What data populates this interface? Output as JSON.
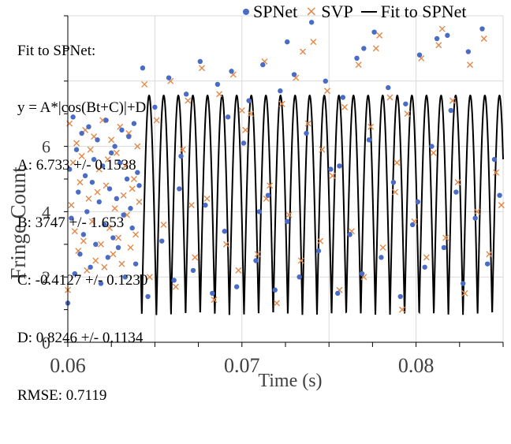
{
  "colors": {
    "spnet": "#4a6cc5",
    "svp": "#e3884a",
    "fit": "#000000",
    "grid": "#d9d9d9",
    "axis": "#000000"
  },
  "fit_text": [
    "Fit to SPNet:",
    "y = A*|cos(Bt+C)|+D",
    "A: 6.733 +/- 0.1538",
    "B: 3747 +/- 1.653",
    "C: -0.4127 +/- 0.1230",
    "D: 0.8246 +/- 0.1134",
    "RMSE: 0.7119"
  ],
  "legend": [
    {
      "label": "SPNet",
      "marker": "dot-icon"
    },
    {
      "label": "SVP",
      "marker": "cross-icon"
    },
    {
      "label": "Fit to SPNet",
      "marker": "line-icon"
    }
  ],
  "chart_data": {
    "type": "scatter",
    "title": "",
    "xlabel": "Time (s)",
    "ylabel": "Fringe Count",
    "xlim": [
      0.06,
      0.085
    ],
    "ylim": [
      0,
      10
    ],
    "x_ticks": [
      0.06,
      0.07,
      0.08
    ],
    "x_tick_labels": [
      "0.06",
      "0.07",
      "0.08"
    ],
    "y_ticks": [
      0,
      2,
      4,
      6
    ],
    "y_tick_labels": [
      "0",
      "2",
      "4",
      "6"
    ],
    "grid": true,
    "legend_position": "top-right",
    "fit": {
      "name": "Fit to SPNet",
      "model": "y = A*|cos(Bt+C)|+D",
      "A": 6.733,
      "B": 3747,
      "C": -0.4127,
      "D": 0.8246,
      "x_start": 0.0642,
      "x_end": 0.085
    },
    "series": [
      {
        "name": "SPNet",
        "marker": "dot",
        "points": [
          [
            0.06,
            1.2
          ],
          [
            0.0601,
            5.3
          ],
          [
            0.0602,
            3.8
          ],
          [
            0.0603,
            6.9
          ],
          [
            0.0604,
            2.1
          ],
          [
            0.0605,
            5.9
          ],
          [
            0.0606,
            4.6
          ],
          [
            0.0607,
            2.7
          ],
          [
            0.0608,
            6.4
          ],
          [
            0.0609,
            3.3
          ],
          [
            0.061,
            5.1
          ],
          [
            0.0611,
            4.0
          ],
          [
            0.0612,
            6.6
          ],
          [
            0.0613,
            2.3
          ],
          [
            0.0614,
            4.9
          ],
          [
            0.0615,
            5.6
          ],
          [
            0.0616,
            3.0
          ],
          [
            0.0617,
            6.2
          ],
          [
            0.0618,
            4.3
          ],
          [
            0.0619,
            1.8
          ],
          [
            0.062,
            5.4
          ],
          [
            0.0621,
            3.6
          ],
          [
            0.0622,
            6.8
          ],
          [
            0.0623,
            2.6
          ],
          [
            0.0624,
            4.7
          ],
          [
            0.0625,
            5.8
          ],
          [
            0.0626,
            3.2
          ],
          [
            0.0627,
            6.0
          ],
          [
            0.0628,
            4.4
          ],
          [
            0.0629,
            2.9
          ],
          [
            0.063,
            5.5
          ],
          [
            0.0631,
            6.5
          ],
          [
            0.0632,
            3.9
          ],
          [
            0.0633,
            2.0
          ],
          [
            0.0634,
            5.0
          ],
          [
            0.0635,
            6.3
          ],
          [
            0.0636,
            4.1
          ],
          [
            0.0637,
            3.5
          ],
          [
            0.0638,
            6.7
          ],
          [
            0.0639,
            2.4
          ],
          [
            0.064,
            5.2
          ],
          [
            0.0641,
            4.8
          ],
          [
            0.0643,
            8.4
          ],
          [
            0.0646,
            1.4
          ],
          [
            0.065,
            7.2
          ],
          [
            0.0654,
            3.1
          ],
          [
            0.0658,
            8.1
          ],
          [
            0.0661,
            1.9
          ],
          [
            0.0665,
            5.7
          ],
          [
            0.0668,
            7.6
          ],
          [
            0.0672,
            2.2
          ],
          [
            0.0676,
            8.6
          ],
          [
            0.0679,
            4.2
          ],
          [
            0.0683,
            1.5
          ],
          [
            0.0686,
            7.9
          ],
          [
            0.069,
            3.4
          ],
          [
            0.0694,
            8.3
          ],
          [
            0.0697,
            1.7
          ],
          [
            0.0701,
            6.1
          ],
          [
            0.0704,
            7.4
          ],
          [
            0.0708,
            2.5
          ],
          [
            0.0712,
            8.5
          ],
          [
            0.0715,
            4.5
          ],
          [
            0.0719,
            1.6
          ],
          [
            0.0722,
            7.7
          ],
          [
            0.0726,
            3.7
          ],
          [
            0.073,
            8.2
          ],
          [
            0.0733,
            2.0
          ],
          [
            0.0737,
            6.4
          ],
          [
            0.074,
            9.8
          ],
          [
            0.0744,
            2.8
          ],
          [
            0.0748,
            8.0
          ],
          [
            0.0751,
            5.3
          ],
          [
            0.0755,
            1.5
          ],
          [
            0.0758,
            7.5
          ],
          [
            0.0762,
            3.3
          ],
          [
            0.0766,
            8.7
          ],
          [
            0.0769,
            2.1
          ],
          [
            0.0773,
            6.2
          ],
          [
            0.0776,
            9.5
          ],
          [
            0.078,
            2.6
          ],
          [
            0.0784,
            7.8
          ],
          [
            0.0787,
            4.9
          ],
          [
            0.0791,
            1.4
          ],
          [
            0.0794,
            7.3
          ],
          [
            0.0798,
            3.6
          ],
          [
            0.0802,
            8.8
          ],
          [
            0.0805,
            2.3
          ],
          [
            0.0809,
            6.0
          ],
          [
            0.0812,
            9.3
          ],
          [
            0.0816,
            2.9
          ],
          [
            0.082,
            7.1
          ],
          [
            0.0823,
            4.6
          ],
          [
            0.0827,
            1.8
          ],
          [
            0.083,
            8.9
          ],
          [
            0.0834,
            3.8
          ],
          [
            0.0838,
            9.6
          ],
          [
            0.0841,
            2.4
          ],
          [
            0.0845,
            5.6
          ],
          [
            0.0848,
            4.5
          ],
          [
            0.0818,
            9.4
          ],
          [
            0.077,
            9.0
          ],
          [
            0.0726,
            9.2
          ],
          [
            0.0692,
            6.9
          ],
          [
            0.0664,
            4.7
          ],
          [
            0.0801,
            4.3
          ],
          [
            0.0756,
            5.4
          ],
          [
            0.071,
            4.0
          ]
        ]
      },
      {
        "name": "SVP",
        "marker": "cross",
        "points": [
          [
            0.06,
            1.6
          ],
          [
            0.0601,
            6.7
          ],
          [
            0.0602,
            4.2
          ],
          [
            0.0603,
            5.5
          ],
          [
            0.0604,
            3.4
          ],
          [
            0.0605,
            6.1
          ],
          [
            0.0606,
            2.8
          ],
          [
            0.0607,
            4.9
          ],
          [
            0.0608,
            5.7
          ],
          [
            0.0609,
            3.1
          ],
          [
            0.061,
            6.5
          ],
          [
            0.0611,
            2.2
          ],
          [
            0.0612,
            4.4
          ],
          [
            0.0613,
            5.9
          ],
          [
            0.0614,
            3.7
          ],
          [
            0.0615,
            6.3
          ],
          [
            0.0616,
            2.5
          ],
          [
            0.0617,
            4.6
          ],
          [
            0.0618,
            5.3
          ],
          [
            0.0619,
            3.0
          ],
          [
            0.062,
            6.8
          ],
          [
            0.0621,
            2.3
          ],
          [
            0.0622,
            4.8
          ],
          [
            0.0623,
            5.6
          ],
          [
            0.0624,
            3.5
          ],
          [
            0.0625,
            6.2
          ],
          [
            0.0626,
            2.7
          ],
          [
            0.0627,
            4.1
          ],
          [
            0.0628,
            5.8
          ],
          [
            0.0629,
            3.2
          ],
          [
            0.063,
            6.6
          ],
          [
            0.0631,
            2.4
          ],
          [
            0.0632,
            4.5
          ],
          [
            0.0633,
            5.4
          ],
          [
            0.0634,
            3.9
          ],
          [
            0.0635,
            6.4
          ],
          [
            0.0636,
            2.9
          ],
          [
            0.0637,
            4.7
          ],
          [
            0.0638,
            5.0
          ],
          [
            0.0639,
            3.3
          ],
          [
            0.064,
            6.0
          ],
          [
            0.0641,
            4.3
          ],
          [
            0.0644,
            7.9
          ],
          [
            0.0647,
            2.0
          ],
          [
            0.0651,
            6.8
          ],
          [
            0.0655,
            3.6
          ],
          [
            0.0659,
            8.0
          ],
          [
            0.0662,
            1.7
          ],
          [
            0.0666,
            5.9
          ],
          [
            0.0669,
            7.4
          ],
          [
            0.0673,
            2.6
          ],
          [
            0.0677,
            8.4
          ],
          [
            0.068,
            4.4
          ],
          [
            0.0684,
            1.3
          ],
          [
            0.0687,
            7.6
          ],
          [
            0.0691,
            3.0
          ],
          [
            0.0695,
            8.2
          ],
          [
            0.0698,
            2.2
          ],
          [
            0.0702,
            6.5
          ],
          [
            0.0705,
            7.0
          ],
          [
            0.0709,
            2.7
          ],
          [
            0.0713,
            8.6
          ],
          [
            0.0716,
            4.8
          ],
          [
            0.072,
            1.2
          ],
          [
            0.0723,
            7.3
          ],
          [
            0.0727,
            3.9
          ],
          [
            0.0731,
            8.1
          ],
          [
            0.0734,
            2.5
          ],
          [
            0.0738,
            6.7
          ],
          [
            0.0741,
            9.2
          ],
          [
            0.0745,
            3.1
          ],
          [
            0.0749,
            7.7
          ],
          [
            0.0752,
            5.1
          ],
          [
            0.0756,
            1.6
          ],
          [
            0.0759,
            7.2
          ],
          [
            0.0763,
            3.4
          ],
          [
            0.0767,
            8.5
          ],
          [
            0.077,
            2.0
          ],
          [
            0.0774,
            6.6
          ],
          [
            0.0777,
            9.0
          ],
          [
            0.0781,
            2.9
          ],
          [
            0.0785,
            7.5
          ],
          [
            0.0788,
            4.6
          ],
          [
            0.0792,
            1.0
          ],
          [
            0.0795,
            7.0
          ],
          [
            0.0799,
            3.7
          ],
          [
            0.0803,
            8.7
          ],
          [
            0.0806,
            2.6
          ],
          [
            0.081,
            5.8
          ],
          [
            0.0813,
            9.1
          ],
          [
            0.0817,
            3.2
          ],
          [
            0.0821,
            7.4
          ],
          [
            0.0824,
            4.9
          ],
          [
            0.0828,
            1.5
          ],
          [
            0.0831,
            8.5
          ],
          [
            0.0835,
            4.0
          ],
          [
            0.0839,
            9.3
          ],
          [
            0.0842,
            2.7
          ],
          [
            0.0846,
            5.2
          ],
          [
            0.0849,
            4.2
          ],
          [
            0.0815,
            9.6
          ],
          [
            0.0779,
            9.4
          ],
          [
            0.0735,
            8.9
          ],
          [
            0.07,
            7.1
          ],
          [
            0.0671,
            4.2
          ],
          [
            0.0789,
            5.5
          ],
          [
            0.0746,
            5.9
          ],
          [
            0.0714,
            4.4
          ]
        ]
      }
    ]
  }
}
